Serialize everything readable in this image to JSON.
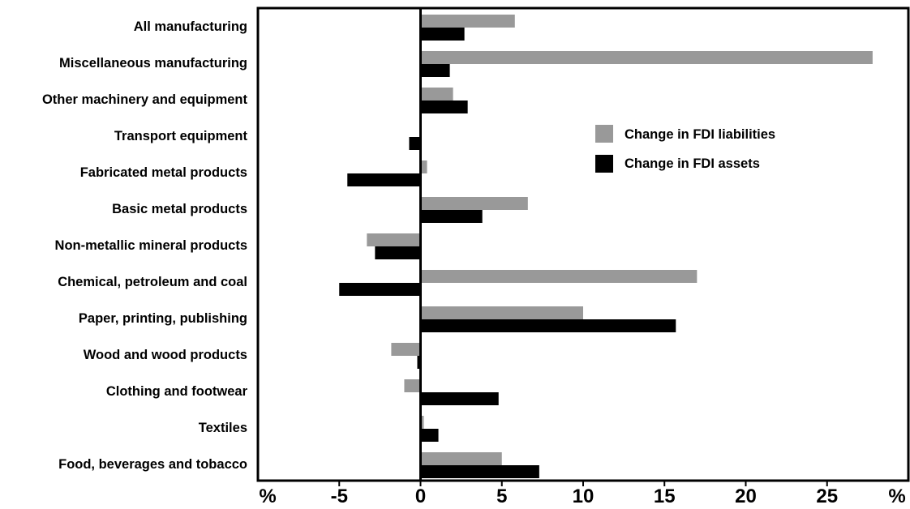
{
  "chart_data": {
    "type": "bar",
    "orientation": "horizontal",
    "categories": [
      "All manufacturing",
      "Miscellaneous manufacturing",
      "Other machinery and equipment",
      "Transport equipment",
      "Fabricated metal products",
      "Basic metal products",
      "Non-metallic mineral products",
      "Chemical, petroleum and coal",
      "Paper, printing, publishing",
      "Wood and wood products",
      "Clothing and footwear",
      "Textiles",
      "Food, beverages and tobacco"
    ],
    "series": [
      {
        "name": "Change in FDI liabilities",
        "color": "#999999",
        "values": [
          5.8,
          27.8,
          2.0,
          0.0,
          0.4,
          6.6,
          -3.3,
          17.0,
          10.0,
          -1.8,
          -1.0,
          0.2,
          5.0
        ]
      },
      {
        "name": "Change in FDI assets",
        "color": "#000000",
        "values": [
          2.7,
          1.8,
          2.9,
          -0.7,
          -4.5,
          3.8,
          -2.8,
          -5.0,
          15.7,
          -0.2,
          4.8,
          1.1,
          7.3
        ]
      }
    ],
    "xlim": [
      -10,
      30
    ],
    "xticks": [
      -5,
      0,
      5,
      10,
      15,
      20,
      25
    ],
    "xtick_labels": [
      "-5",
      "0",
      "5",
      "10",
      "15",
      "20",
      "25"
    ],
    "unit_label_left": "%",
    "unit_label_right": "%",
    "grid": false,
    "legend_position": "upper-right"
  }
}
